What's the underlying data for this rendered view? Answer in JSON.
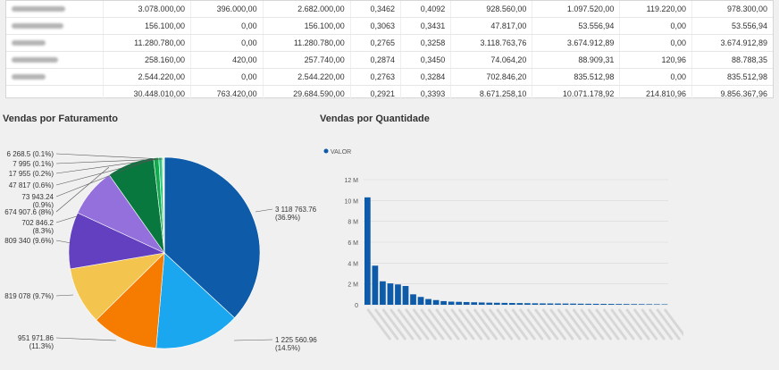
{
  "table": {
    "rows": [
      [
        "3.078.000,00",
        "396.000,00",
        "2.682.000,00",
        "0,3462",
        "0,4092",
        "928.560,00",
        "1.097.520,00",
        "119.220,00",
        "978.300,00"
      ],
      [
        "156.100,00",
        "0,00",
        "156.100,00",
        "0,3063",
        "0,3431",
        "47.817,00",
        "53.556,94",
        "0,00",
        "53.556,94"
      ],
      [
        "11.280.780,00",
        "0,00",
        "11.280.780,00",
        "0,2765",
        "0,3258",
        "3.118.763,76",
        "3.674.912,89",
        "0,00",
        "3.674.912,89"
      ],
      [
        "258.160,00",
        "420,00",
        "257.740,00",
        "0,2874",
        "0,3450",
        "74.064,20",
        "88.909,31",
        "120,96",
        "88.788,35"
      ],
      [
        "2.544.220,00",
        "0,00",
        "2.544.220,00",
        "0,2763",
        "0,3284",
        "702.846,20",
        "835.512,98",
        "0,00",
        "835.512,98"
      ]
    ],
    "total": [
      "30.448.010,00",
      "763.420,00",
      "29.684.590,00",
      "0,2921",
      "0,3393",
      "8.671.258,10",
      "10.071.178,92",
      "214.810,96",
      "9.856.367,96"
    ]
  },
  "chart_data": [
    {
      "type": "pie",
      "title": "Vendas por Faturamento",
      "slices": [
        {
          "value": 3118763.76,
          "label": "3 118 763.76",
          "pct": "(36.9%)",
          "color": "#0d5ba9"
        },
        {
          "value": 1225560.96,
          "label": "1 225 560.96",
          "pct": "(14.5%)",
          "color": "#1aa7f0"
        },
        {
          "value": 951971.86,
          "label": "951 971.86",
          "pct": "(11.3%)",
          "color": "#f57c00"
        },
        {
          "value": 819078,
          "label": "819 078 (9.7%)",
          "pct": "",
          "color": "#f3c54e"
        },
        {
          "value": 809340,
          "label": "809 340 (9.6%)",
          "pct": "",
          "color": "#6340bf"
        },
        {
          "value": 702846.2,
          "label": "702 846.2",
          "pct": "(8.3%)",
          "color": "#9370db"
        },
        {
          "value": 674907.6,
          "label": "674 907.6 (8%)",
          "pct": "",
          "color": "#08783f"
        },
        {
          "value": 73943.24,
          "label": "73 943.24",
          "pct": "(0.9%)",
          "color": "#12a94e"
        },
        {
          "value": 47817,
          "label": "47 817 (0.6%)",
          "pct": "",
          "color": "#2ac87a"
        },
        {
          "value": 17955,
          "label": "17 955 (0.2%)",
          "pct": "",
          "color": "#7bd88e"
        },
        {
          "value": 7995,
          "label": "7 995 (0.1%)",
          "pct": "",
          "color": "#c9a227"
        },
        {
          "value": 6268.5,
          "label": "6 268.5 (0.1%)",
          "pct": "",
          "color": "#e39a2d"
        }
      ]
    },
    {
      "type": "bar",
      "title": "Vendas por Quantidade",
      "legend": "VALOR",
      "color": "#0d5ba9",
      "yticks": [
        "0",
        "2 M",
        "4 M",
        "6 M",
        "8 M",
        "10 M",
        "12 M"
      ],
      "ylim": [
        0,
        12000000
      ],
      "values": [
        10300000,
        3750000,
        2250000,
        2050000,
        1950000,
        1800000,
        1000000,
        750000,
        550000,
        450000,
        350000,
        300000,
        280000,
        260000,
        240000,
        220000,
        200000,
        190000,
        180000,
        170000,
        160000,
        150000,
        140000,
        130000,
        125000,
        120000,
        115000,
        110000,
        100000,
        95000,
        90000,
        85000,
        80000,
        75000,
        70000,
        65000,
        60000,
        55000,
        50000,
        45000
      ]
    }
  ]
}
